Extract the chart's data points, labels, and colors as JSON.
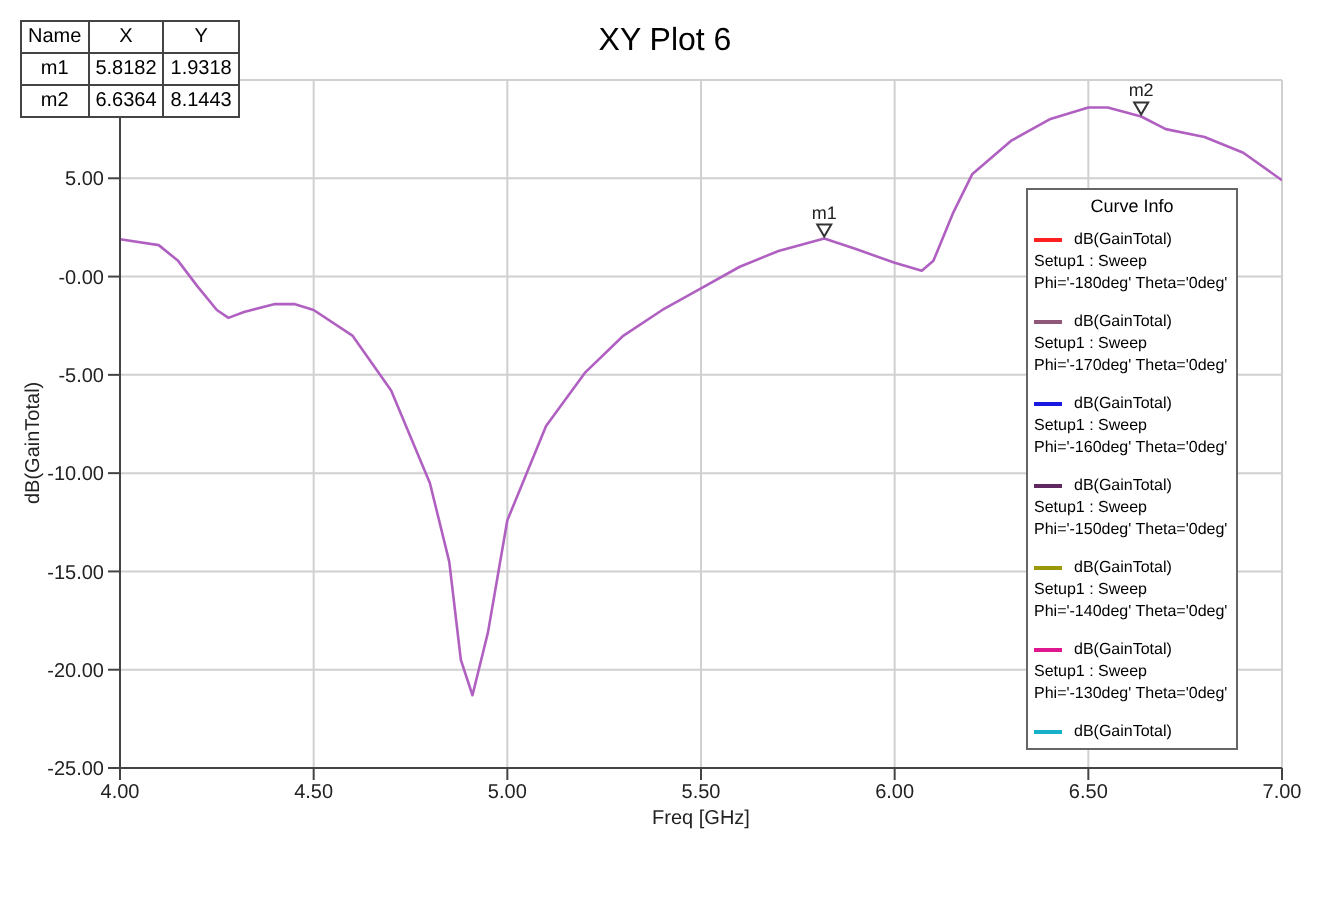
{
  "chart_data": {
    "type": "line",
    "title": "XY Plot 6",
    "xlabel": "Freq [GHz]",
    "ylabel": "dB(GainTotal)",
    "x": [
      4.0,
      4.1,
      4.15,
      4.2,
      4.25,
      4.28,
      4.32,
      4.4,
      4.45,
      4.5,
      4.6,
      4.7,
      4.8,
      4.85,
      4.88,
      4.91,
      4.95,
      5.0,
      5.1,
      5.2,
      5.3,
      5.4,
      5.5,
      5.6,
      5.7,
      5.8182,
      5.9,
      6.0,
      6.07,
      6.1,
      6.15,
      6.2,
      6.3,
      6.4,
      6.5,
      6.55,
      6.6364,
      6.7,
      6.8,
      6.9,
      7.0
    ],
    "series": [
      {
        "color": "#b060c0",
        "values": [
          1.9,
          1.6,
          0.8,
          -0.5,
          -1.7,
          -2.1,
          -1.8,
          -1.4,
          -1.4,
          -1.7,
          -3.0,
          -5.8,
          -10.5,
          -14.5,
          -19.5,
          -21.3,
          -18.1,
          -12.4,
          -7.6,
          -4.9,
          -3.0,
          -1.7,
          -0.6,
          0.5,
          1.3,
          1.9318,
          1.4,
          0.7,
          0.3,
          0.8,
          3.2,
          5.2,
          6.9,
          8.0,
          8.6,
          8.6,
          8.1443,
          7.5,
          7.1,
          6.3,
          4.9
        ]
      },
      {
        "name": "dB(GainTotal)\nSetup1 : Sweep\nPhi='-180deg' Theta='0deg'",
        "color": "#ff2020",
        "values": [
          null,
          null,
          null,
          null,
          null,
          null,
          null,
          null,
          null,
          null,
          null,
          null,
          null,
          null,
          null,
          null,
          null,
          null,
          null,
          null,
          null,
          null,
          null,
          null,
          null,
          null,
          null,
          null,
          null,
          null,
          null,
          null,
          null,
          null,
          null,
          null,
          null,
          null,
          null,
          null,
          null
        ]
      },
      {
        "name": "dB(GainTotal)\nSetup1 : Sweep\nPhi='-170deg' Theta='0deg'",
        "color": "#905878",
        "values": [
          null,
          null,
          null,
          null,
          null,
          null,
          null,
          null,
          null,
          null,
          null,
          null,
          null,
          null,
          null,
          null,
          null,
          null,
          null,
          null,
          null,
          null,
          null,
          null,
          null,
          null,
          null,
          null,
          null,
          null,
          null,
          null,
          null,
          null,
          null,
          null,
          null,
          null,
          null,
          null,
          null
        ]
      },
      {
        "name": "dB(GainTotal)\nSetup1 : Sweep\nPhi='-160deg' Theta='0deg'",
        "color": "#1818e0",
        "values": [
          null,
          null,
          null,
          null,
          null,
          null,
          null,
          null,
          null,
          null,
          null,
          null,
          null,
          null,
          null,
          null,
          null,
          null,
          null,
          null,
          null,
          null,
          null,
          null,
          null,
          null,
          null,
          null,
          null,
          null,
          null,
          null,
          null,
          null,
          null,
          null,
          null,
          null,
          null,
          null,
          null
        ]
      },
      {
        "name": "dB(GainTotal)\nSetup1 : Sweep\nPhi='-150deg' Theta='0deg'",
        "color": "#602860",
        "values": [
          null,
          null,
          null,
          null,
          null,
          null,
          null,
          null,
          null,
          null,
          null,
          null,
          null,
          null,
          null,
          null,
          null,
          null,
          null,
          null,
          null,
          null,
          null,
          null,
          null,
          null,
          null,
          null,
          null,
          null,
          null,
          null,
          null,
          null,
          null,
          null,
          null,
          null,
          null,
          null,
          null
        ]
      },
      {
        "name": "dB(GainTotal)\nSetup1 : Sweep\nPhi='-140deg' Theta='0deg'",
        "color": "#98980a",
        "values": [
          null,
          null,
          null,
          null,
          null,
          null,
          null,
          null,
          null,
          null,
          null,
          null,
          null,
          null,
          null,
          null,
          null,
          null,
          null,
          null,
          null,
          null,
          null,
          null,
          null,
          null,
          null,
          null,
          null,
          null,
          null,
          null,
          null,
          null,
          null,
          null,
          null,
          null,
          null,
          null,
          null
        ]
      },
      {
        "name": "dB(GainTotal)\nSetup1 : Sweep\nPhi='-130deg' Theta='0deg'",
        "color": "#e01890",
        "values": [
          null,
          null,
          null,
          null,
          null,
          null,
          null,
          null,
          null,
          null,
          null,
          null,
          null,
          null,
          null,
          null,
          null,
          null,
          null,
          null,
          null,
          null,
          null,
          null,
          null,
          null,
          null,
          null,
          null,
          null,
          null,
          null,
          null,
          null,
          null,
          null,
          null,
          null,
          null,
          null,
          null
        ]
      },
      {
        "name": "dB(GainTotal)",
        "color": "#18b0c8",
        "values": [
          null,
          null,
          null,
          null,
          null,
          null,
          null,
          null,
          null,
          null,
          null,
          null,
          null,
          null,
          null,
          null,
          null,
          null,
          null,
          null,
          null,
          null,
          null,
          null,
          null,
          null,
          null,
          null,
          null,
          null,
          null,
          null,
          null,
          null,
          null,
          null,
          null,
          null,
          null,
          null,
          null
        ]
      }
    ],
    "legend_title": "Curve Info",
    "legend": "right",
    "xlim": [
      4,
      7
    ],
    "xticks": [
      {
        "value": 4,
        "label": "4.00"
      },
      {
        "value": 4.5,
        "label": "4.50"
      },
      {
        "value": 5,
        "label": "5.00"
      },
      {
        "value": 5.5,
        "label": "5.50"
      },
      {
        "value": 6,
        "label": "6.00"
      },
      {
        "value": 6.5,
        "label": "6.50"
      },
      {
        "value": 7,
        "label": "7.00"
      }
    ],
    "ylim": [
      -25,
      10
    ],
    "yticks": [
      {
        "value": -25,
        "label": "-25.00"
      },
      {
        "value": -20,
        "label": "-20.00"
      },
      {
        "value": -15,
        "label": "-15.00"
      },
      {
        "value": -10,
        "label": "-10.00"
      },
      {
        "value": -5,
        "label": "-5.00"
      },
      {
        "value": 0,
        "label": "-0.00"
      },
      {
        "value": 5,
        "label": "5.00"
      }
    ],
    "grid": true,
    "annotations": [
      "Name",
      "X",
      "Y",
      "m1",
      "5.8182",
      "1.9318",
      "m2",
      "6.6364",
      "8.1443",
      {
        "text": "m1",
        "x": 5.8182,
        "y": 1.9318
      },
      {
        "text": "m2",
        "x": 6.6364,
        "y": 8.1443
      }
    ]
  }
}
